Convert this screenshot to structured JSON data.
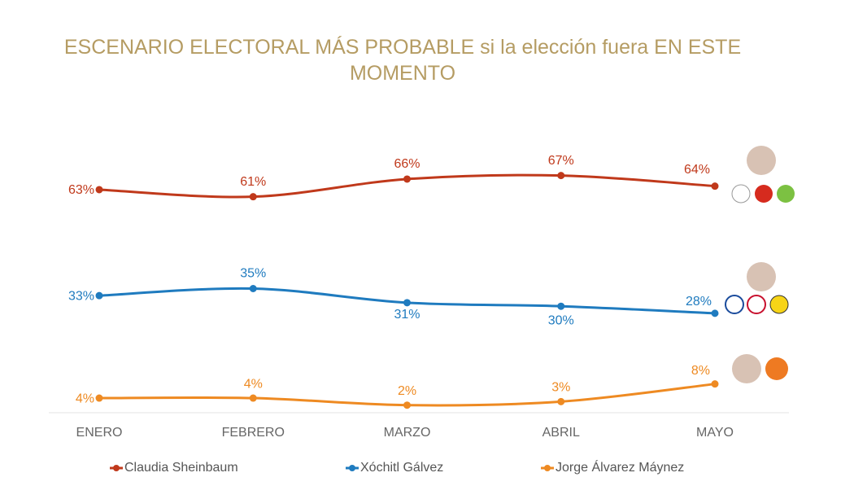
{
  "chart_data": {
    "type": "line",
    "title": "ESCENARIO ELECTORAL MÁS PROBABLE si la elección fuera EN ESTE MOMENTO",
    "categories": [
      "ENERO",
      "FEBRERO",
      "MARZO",
      "ABRIL",
      "MAYO"
    ],
    "series": [
      {
        "name": "Claudia Sheinbaum",
        "color": "#c0391b",
        "values": [
          63,
          61,
          66,
          67,
          64
        ],
        "value_labels": [
          "63%",
          "61%",
          "66%",
          "67%",
          "64%"
        ]
      },
      {
        "name": "Xóchitl Gálvez",
        "color": "#1f7bbf",
        "values": [
          33,
          35,
          31,
          30,
          28
        ],
        "value_labels": [
          "33%",
          "35%",
          "31%",
          "30%",
          "28%"
        ]
      },
      {
        "name": "Jorge Álvarez Máynez",
        "color": "#ee8a22",
        "values": [
          4,
          4,
          2,
          3,
          8
        ],
        "value_labels": [
          "4%",
          "4%",
          "2%",
          "3%",
          "8%"
        ]
      }
    ],
    "ylim": [
      0,
      70
    ]
  }
}
